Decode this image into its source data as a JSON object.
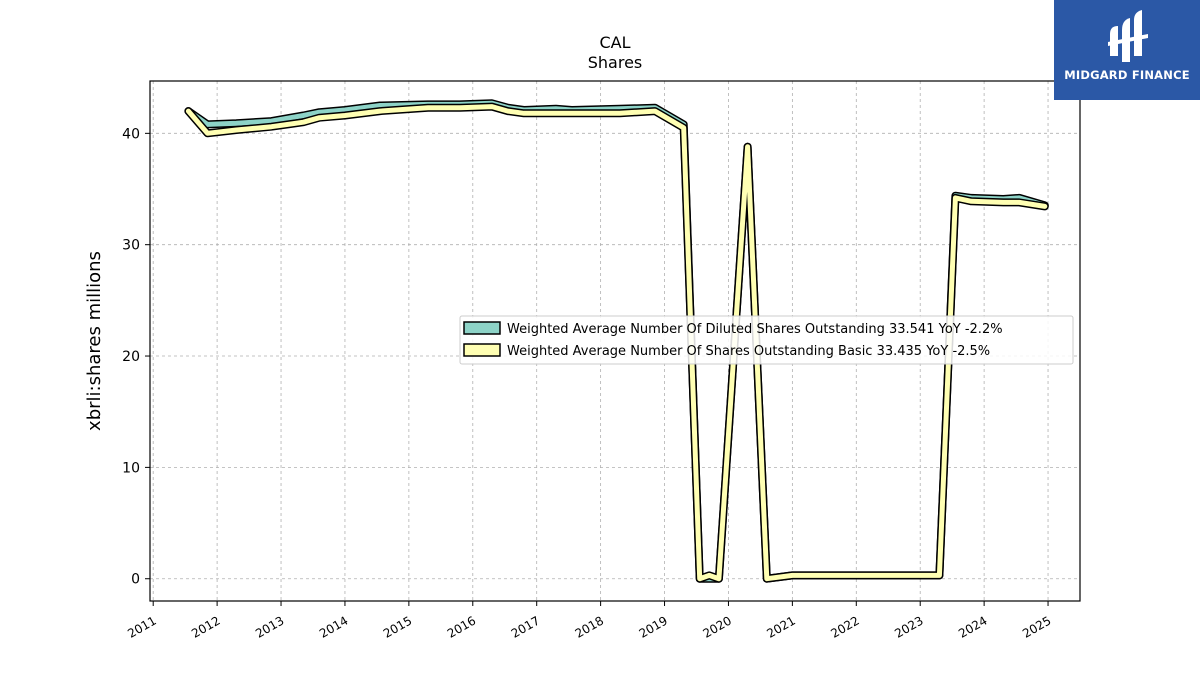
{
  "brand": {
    "name": "MIDGARD FINANCE",
    "bg_color": "#2b58a6"
  },
  "chart_data": {
    "type": "line",
    "title": "CAL",
    "subtitle": "Shares",
    "ylabel": "xbrli:shares millions",
    "xlabel": "",
    "xlim": [
      2010.95,
      2025.5
    ],
    "ylim": [
      -2,
      44.7
    ],
    "yticks": [
      0,
      10,
      20,
      30,
      40
    ],
    "xticks": [
      "2011",
      "2012",
      "2013",
      "2014",
      "2015",
      "2016",
      "2017",
      "2018",
      "2019",
      "2020",
      "2021",
      "2022",
      "2023",
      "2024",
      "2025"
    ],
    "grid": true,
    "legend_position": "center-right",
    "series": [
      {
        "name": "Weighted Average Number Of Diluted Shares Outstanding  33.541 YoY -2.2%",
        "color": "#8dd3c7",
        "x": [
          2011.55,
          2011.85,
          2012.3,
          2012.85,
          2013.35,
          2013.6,
          2014.0,
          2014.55,
          2015.3,
          2015.8,
          2016.3,
          2016.55,
          2016.8,
          2017.3,
          2017.55,
          2018.3,
          2018.85,
          2019.3,
          2019.55,
          2019.85,
          2020.3,
          2020.6,
          2021.0,
          2022.0,
          2023.0,
          2023.3,
          2023.55,
          2023.8,
          2024.3,
          2024.55,
          2024.95
        ],
        "values": [
          42.0,
          40.8,
          40.9,
          41.1,
          41.6,
          41.9,
          42.1,
          42.5,
          42.6,
          42.6,
          42.7,
          42.3,
          42.1,
          42.2,
          42.1,
          42.2,
          42.3,
          40.8,
          0.0,
          0.0,
          38.8,
          0.0,
          0.3,
          0.3,
          0.3,
          0.3,
          34.4,
          34.2,
          34.1,
          34.2,
          33.541
        ]
      },
      {
        "name": "Weighted Average Number Of Shares Outstanding Basic  33.435 YoY -2.5%",
        "color": "#ffffb3",
        "x": [
          2011.55,
          2011.85,
          2012.3,
          2012.85,
          2013.35,
          2013.6,
          2014.0,
          2014.55,
          2015.3,
          2015.8,
          2016.3,
          2016.55,
          2016.8,
          2017.3,
          2017.55,
          2018.3,
          2018.85,
          2019.3,
          2019.55,
          2019.7,
          2019.85,
          2020.3,
          2020.6,
          2021.0,
          2022.0,
          2023.0,
          2023.3,
          2023.55,
          2023.8,
          2024.3,
          2024.55,
          2024.95
        ],
        "values": [
          42.0,
          40.0,
          40.3,
          40.6,
          41.0,
          41.4,
          41.6,
          42.0,
          42.3,
          42.3,
          42.4,
          42.0,
          41.8,
          41.8,
          41.8,
          41.8,
          42.0,
          40.5,
          0.0,
          0.3,
          0.0,
          38.8,
          0.0,
          0.3,
          0.3,
          0.3,
          0.3,
          34.2,
          33.9,
          33.8,
          33.8,
          33.435
        ]
      }
    ]
  }
}
